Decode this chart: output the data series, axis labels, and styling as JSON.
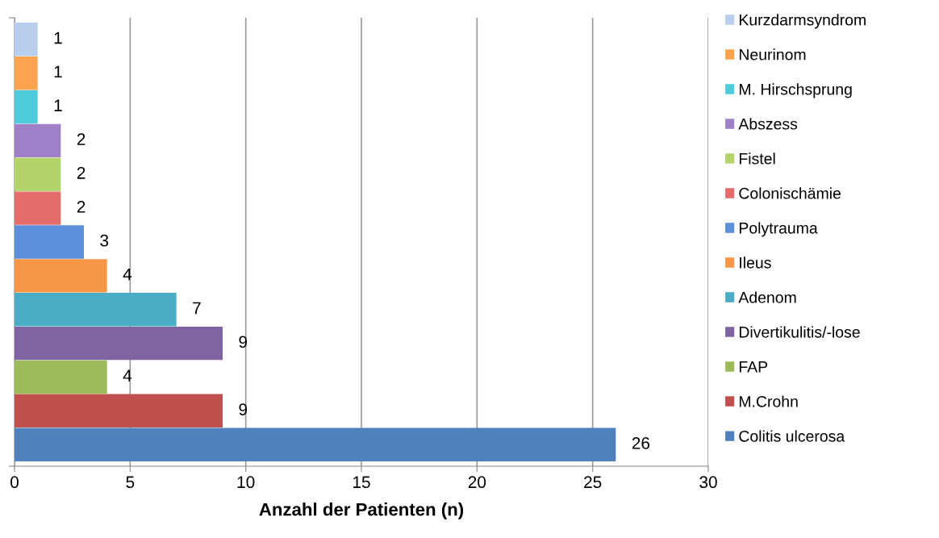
{
  "chart_data": {
    "type": "bar",
    "orientation": "horizontal",
    "xlabel": "Anzahl der Patienten (n)",
    "categories": [
      null
    ],
    "series": [
      {
        "name": "Colitis ulcerosa",
        "color": "#4f81bd",
        "values": [
          26
        ]
      },
      {
        "name": "M.Crohn",
        "color": "#c0504d",
        "values": [
          9
        ]
      },
      {
        "name": "FAP",
        "color": "#9bbb59",
        "values": [
          4
        ]
      },
      {
        "name": "Divertikulitis/-lose",
        "color": "#8064a2",
        "values": [
          9
        ]
      },
      {
        "name": "Adenom",
        "color": "#4bacc6",
        "values": [
          7
        ]
      },
      {
        "name": "Ileus",
        "color": "#f79646",
        "values": [
          4
        ]
      },
      {
        "name": "Polytrauma",
        "color": "#5b8fd9",
        "values": [
          3
        ]
      },
      {
        "name": "Colonischämie",
        "color": "#e46c6a",
        "values": [
          2
        ]
      },
      {
        "name": "Fistel",
        "color": "#b3d36b",
        "values": [
          2
        ]
      },
      {
        "name": "Abszess",
        "color": "#a07fc9",
        "values": [
          2
        ]
      },
      {
        "name": "M. Hirschsprung",
        "color": "#4fcbdc",
        "values": [
          1
        ]
      },
      {
        "name": "Neurinom",
        "color": "#fba34e",
        "values": [
          1
        ]
      },
      {
        "name": "Kurzdarmsyndrom",
        "color": "#b9cdec",
        "values": [
          1
        ]
      }
    ],
    "xlim": [
      0,
      30
    ],
    "xticks": [
      0,
      5,
      10,
      15,
      20,
      25,
      30
    ],
    "grid": "x",
    "legend": "right",
    "data_labels": true,
    "tick_labels": "x"
  }
}
